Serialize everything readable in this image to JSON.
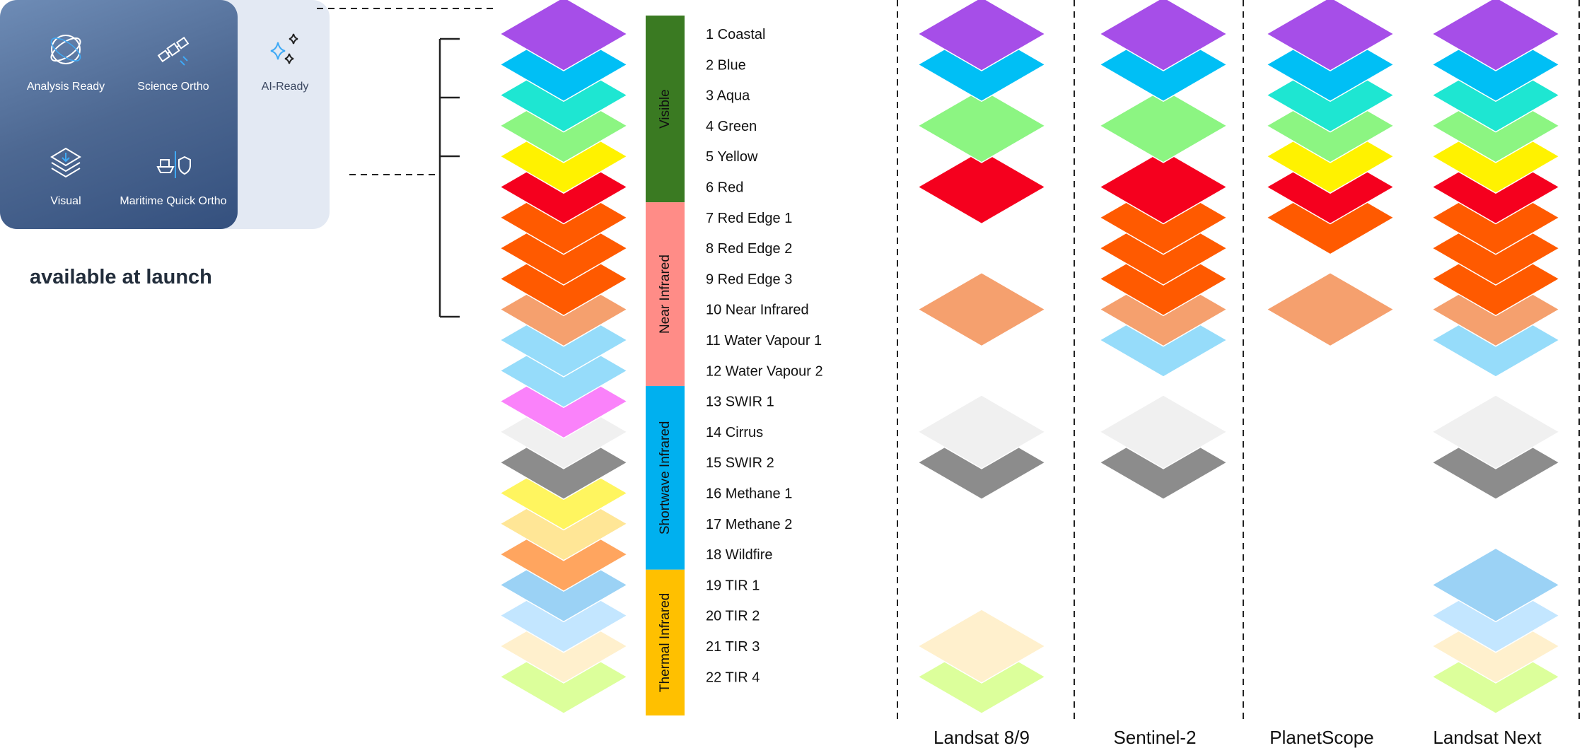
{
  "products": {
    "items": [
      {
        "label": "Analysis Ready",
        "icon": "orbit-icon"
      },
      {
        "label": "Science Ortho",
        "icon": "satellite-icon"
      },
      {
        "label": "AI-Ready",
        "icon": "sparkles-icon"
      },
      {
        "label": "Visual",
        "icon": "layers-icon"
      },
      {
        "label": "Maritime Quick Ortho",
        "icon": "ship-shield-icon"
      }
    ],
    "caption": "available at launch"
  },
  "spectral_groups": [
    {
      "label": "Visible",
      "color": "#3a7a22",
      "from_band": 1,
      "to_band": 6
    },
    {
      "label": "Near Infrared",
      "color": "#ff8c87",
      "from_band": 7,
      "to_band": 12
    },
    {
      "label": "Shortwave Infrared",
      "color": "#00b0ef",
      "from_band": 13,
      "to_band": 18
    },
    {
      "label": "Thermal Infrared",
      "color": "#ffc000",
      "from_band": 19,
      "to_band": 22
    }
  ],
  "bands": [
    {
      "label": "1 Coastal",
      "color": "#a64ee8"
    },
    {
      "label": "2 Blue",
      "color": "#00bff5"
    },
    {
      "label": "3 Aqua",
      "color": "#1ee6d2"
    },
    {
      "label": "4 Green",
      "color": "#8cf582"
    },
    {
      "label": "5 Yellow",
      "color": "#fff200"
    },
    {
      "label": "6 Red",
      "color": "#f5001e"
    },
    {
      "label": "7 Red Edge 1",
      "color": "#ff5a00"
    },
    {
      "label": "8 Red Edge 2",
      "color": "#ff5a00"
    },
    {
      "label": "9 Red Edge 3",
      "color": "#ff5a00"
    },
    {
      "label": "10 Near Infrared",
      "color": "#f5a06e"
    },
    {
      "label": "11 Water Vapour 1",
      "color": "#96dcfa"
    },
    {
      "label": "12 Water Vapour 2",
      "color": "#96dcfa"
    },
    {
      "label": "13 SWIR 1",
      "color": "#fa82fa"
    },
    {
      "label": "14 Cirrus",
      "color": "#f0f0f0"
    },
    {
      "label": "15 SWIR 2",
      "color": "#8c8c8c"
    },
    {
      "label": "16 Methane 1",
      "color": "#fff55f"
    },
    {
      "label": "17 Methane 2",
      "color": "#ffe696"
    },
    {
      "label": "18 Wildfire",
      "color": "#ffa55f"
    },
    {
      "label": "19 TIR 1",
      "color": "#9bd2f5"
    },
    {
      "label": "20 TIR 2",
      "color": "#c3e6ff"
    },
    {
      "label": "21 TIR 3",
      "color": "#fff0cd"
    },
    {
      "label": "22 TIR 4",
      "color": "#dcff9b"
    }
  ],
  "platforms": [
    {
      "label": "Landsat 8/9",
      "bands": [
        1,
        2,
        4,
        6,
        10,
        14,
        15,
        21,
        22
      ]
    },
    {
      "label": "Sentinel-2",
      "bands": [
        1,
        2,
        4,
        6,
        7,
        8,
        9,
        10,
        11,
        14,
        15
      ]
    },
    {
      "label": "PlanetScope",
      "bands": [
        1,
        2,
        3,
        4,
        5,
        6,
        7,
        10
      ]
    },
    {
      "label": "Landsat Next",
      "bands": [
        1,
        2,
        3,
        4,
        5,
        6,
        7,
        8,
        9,
        10,
        11,
        14,
        15,
        19,
        20,
        21,
        22
      ]
    }
  ]
}
